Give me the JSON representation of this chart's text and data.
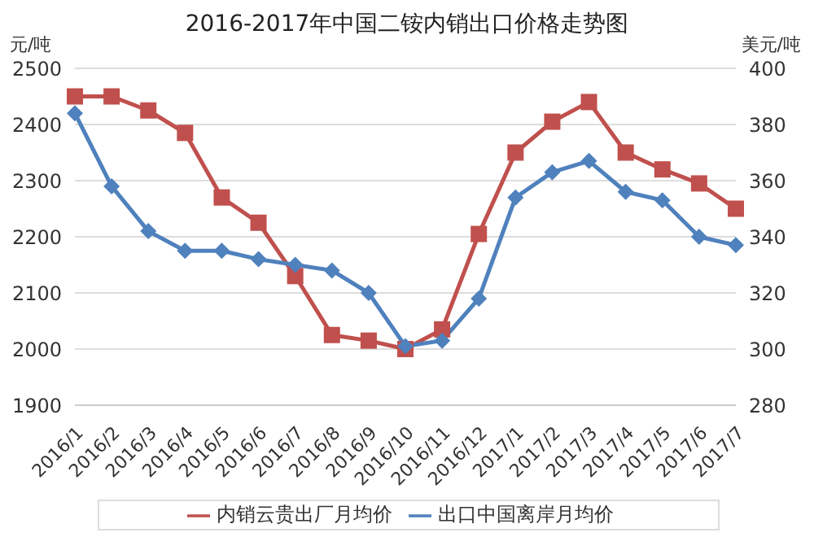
{
  "chart_data": {
    "type": "line",
    "title": "2016-2017年中国二铵内销出口价格走势图",
    "ylabel": "元/吨",
    "y2label": "美元/吨",
    "categories": [
      "2016/1",
      "2016/2",
      "2016/3",
      "2016/4",
      "2016/5",
      "2016/6",
      "2016/7",
      "2016/8",
      "2016/9",
      "2016/10",
      "2016/11",
      "2016/12",
      "2017/1",
      "2017/2",
      "2017/3",
      "2017/4",
      "2017/5",
      "2017/6",
      "2017/7"
    ],
    "series": [
      {
        "name": "内销云贵出厂月均价",
        "color": "#c0504d",
        "marker": "square",
        "values": [
          2450,
          2450,
          2425,
          2385,
          2270,
          2225,
          2130,
          2025,
          2015,
          2000,
          2035,
          2205,
          2350,
          2405,
          2440,
          2350,
          2320,
          2295,
          2250
        ]
      },
      {
        "name": "出口中国离岸月均价",
        "color": "#4f81bd",
        "marker": "diamond",
        "axis": "y2",
        "values": [
          384,
          358,
          342,
          335,
          335,
          332,
          330,
          328,
          320,
          301,
          303,
          318,
          354,
          363,
          367,
          356,
          353,
          340,
          337
        ]
      }
    ],
    "ylim": [
      1900,
      2500
    ],
    "yticks": [
      1900,
      2000,
      2100,
      2200,
      2300,
      2400,
      2500
    ],
    "y2lim": [
      280,
      400
    ],
    "y2ticks": [
      280,
      300,
      320,
      340,
      360,
      380,
      400
    ],
    "grid": "y",
    "legend": "bottom",
    "line_style": "solid"
  }
}
